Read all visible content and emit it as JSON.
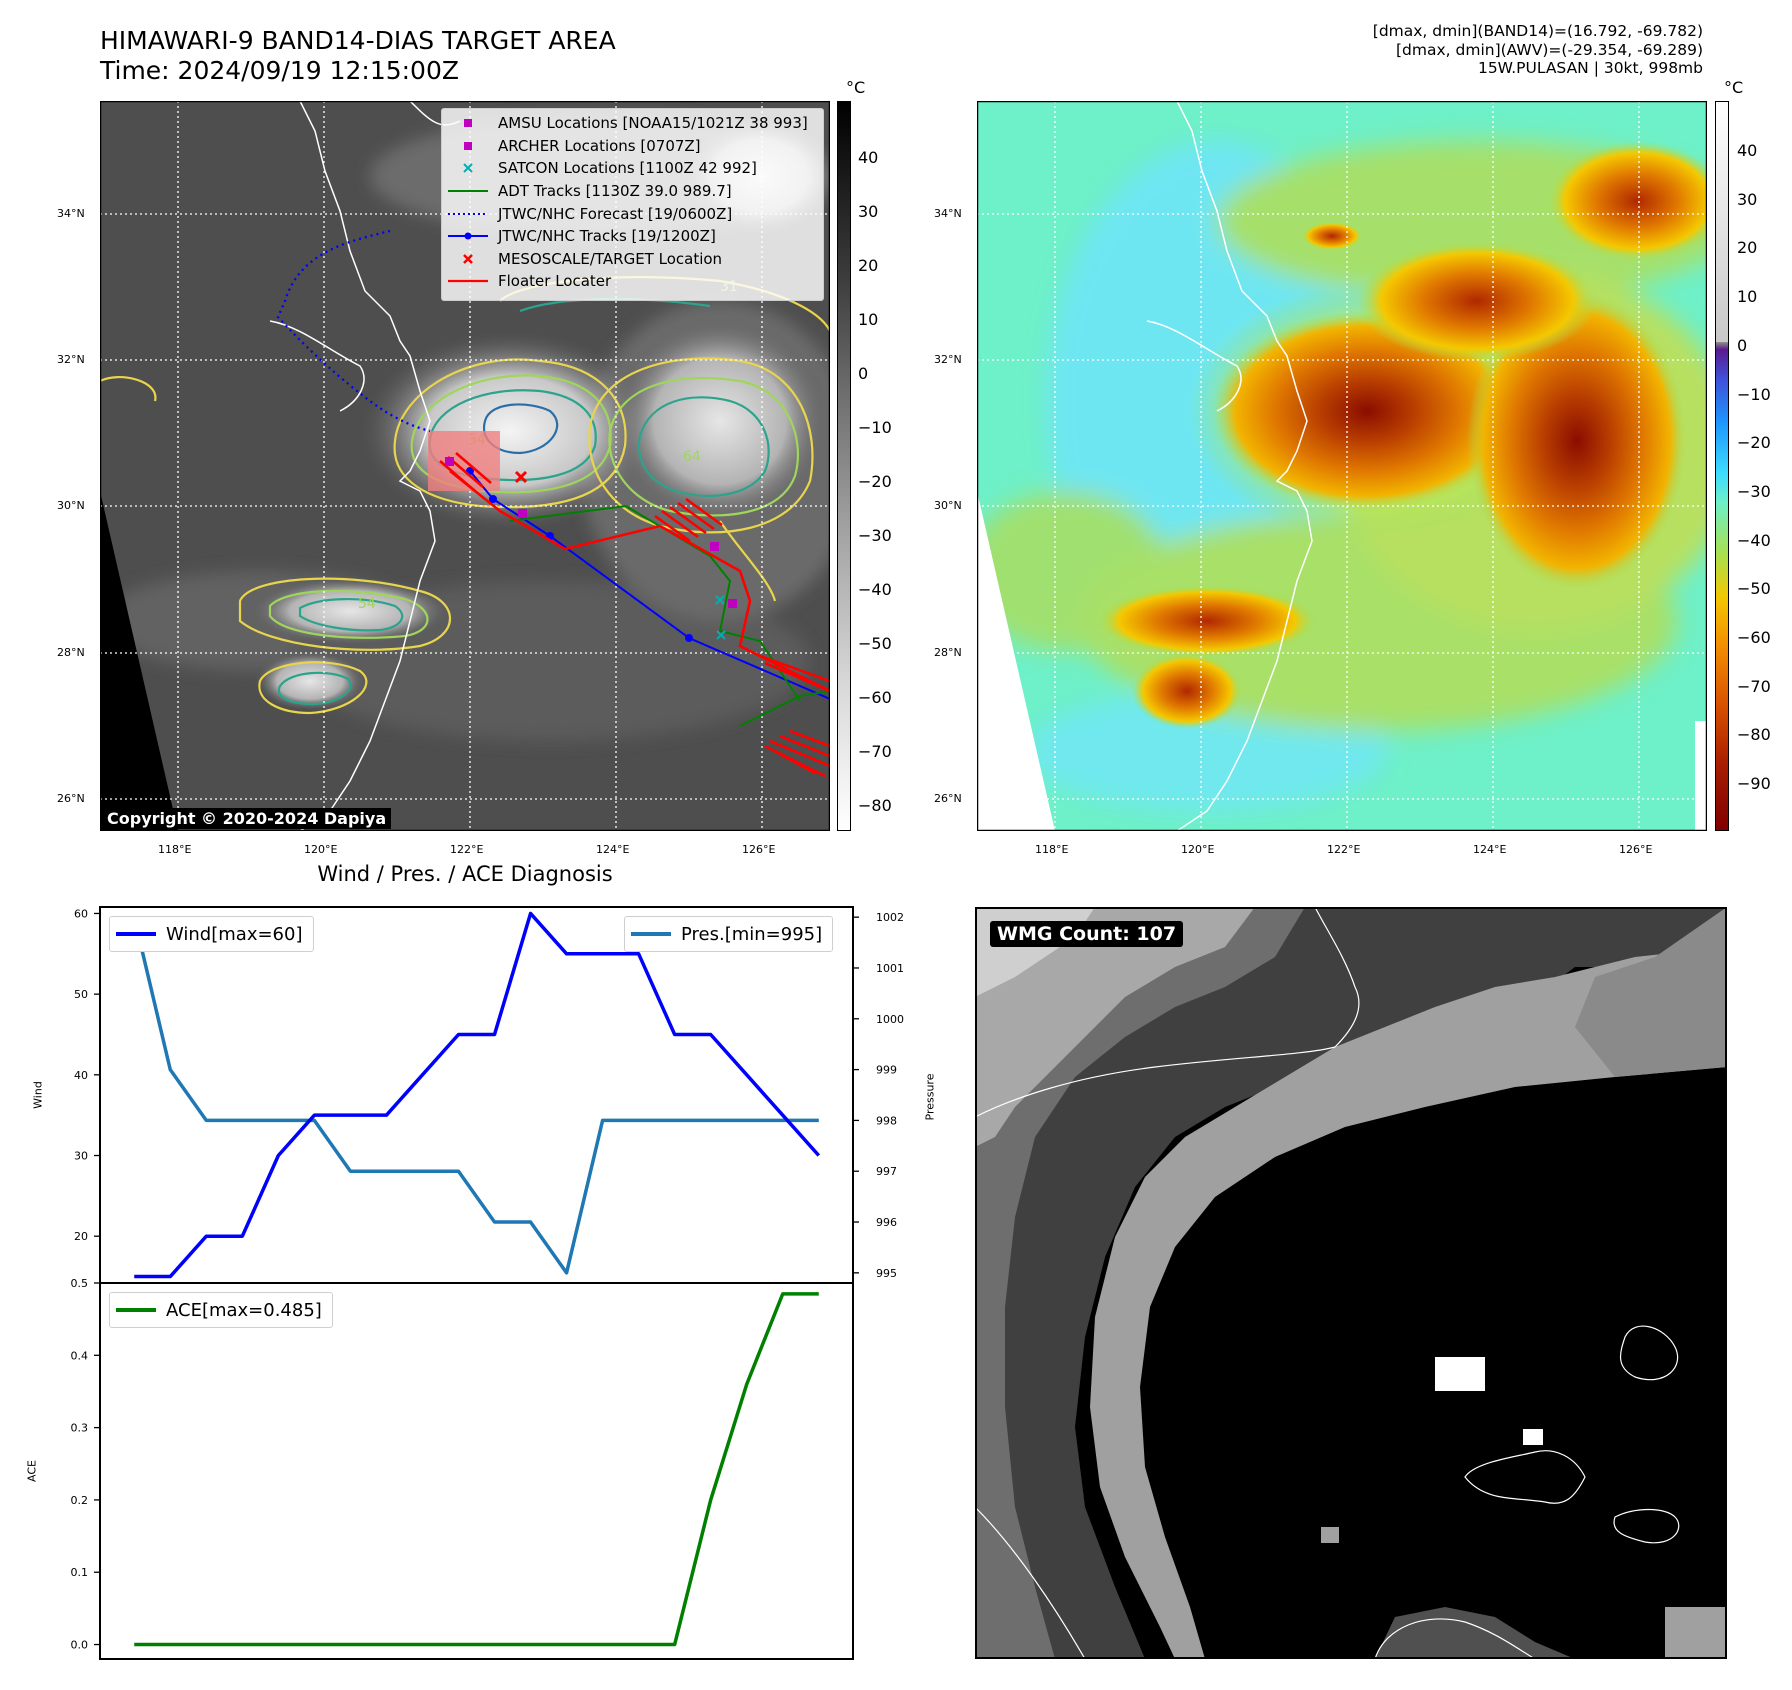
{
  "header": {
    "title_line1": "HIMAWARI-9 BAND14-DIAS TARGET AREA",
    "title_line2": "Time: 2024/09/19 12:15:00Z",
    "info_line1": "[dmax, dmin](BAND14)=(16.792, -69.782)",
    "info_line2": "[dmax, dmin](AWV)=(-29.354, -69.289)",
    "info_line3": "15W.PULASAN | 30kt, 998mb"
  },
  "map": {
    "lat_labels": [
      "34°N",
      "32°N",
      "30°N",
      "28°N",
      "26°N"
    ],
    "lon_labels": [
      "118°E",
      "120°E",
      "122°E",
      "124°E",
      "126°E"
    ],
    "copyright": "Copyright © 2020-2024 Dapiya",
    "contour_labels": [
      "54",
      "31",
      "64"
    ]
  },
  "colorbar_gray": {
    "unit": "°C",
    "ticks": [
      "40",
      "30",
      "20",
      "10",
      "0",
      "−10",
      "−20",
      "−30",
      "−40",
      "−50",
      "−60",
      "−70",
      "−80"
    ]
  },
  "colorbar_awv": {
    "unit": "°C",
    "ticks": [
      "40",
      "30",
      "20",
      "10",
      "0",
      "−10",
      "−20",
      "−30",
      "−40",
      "−50",
      "−60",
      "−70",
      "−80",
      "−90"
    ]
  },
  "legend": {
    "items": [
      {
        "label": "AMSU Locations [NOAA15/1021Z 38 993]",
        "marker": "square",
        "color": "#c000c0"
      },
      {
        "label": "ARCHER Locations [0707Z]",
        "marker": "square",
        "color": "#c000c0"
      },
      {
        "label": "SATCON Locations [1100Z 42 992]",
        "marker": "x",
        "color": "#00b0b0"
      },
      {
        "label": "ADT Tracks [1130Z 39.0 989.7]",
        "marker": "line",
        "color": "#008000"
      },
      {
        "label": "JTWC/NHC Forecast [19/0600Z]",
        "marker": "dotted",
        "color": "#0000ff"
      },
      {
        "label": "JTWC/NHC Tracks [19/1200Z]",
        "marker": "line-dot",
        "color": "#0000ff"
      },
      {
        "label": "MESOSCALE/TARGET Location",
        "marker": "x",
        "color": "#ff0000"
      },
      {
        "label": "Floater Locater",
        "marker": "line",
        "color": "#ff0000"
      }
    ]
  },
  "diag": {
    "title": "Wind / Pres. / ACE Diagnosis",
    "wind_ylabel": "Wind",
    "pres_ylabel": "Pressure",
    "ace_ylabel": "ACE",
    "wind_legend": "Wind[max=60]",
    "pres_legend": "Pres.[min=995]",
    "ace_legend": "ACE[max=0.485]",
    "wind_ticks": [
      "60",
      "50",
      "40",
      "30",
      "20"
    ],
    "pres_ticks": [
      "1002",
      "1001",
      "1000",
      "999",
      "998",
      "997",
      "996",
      "995"
    ],
    "ace_ticks": [
      "0.5",
      "0.4",
      "0.3",
      "0.2",
      "0.1",
      "0.0"
    ]
  },
  "wmg": {
    "label": "WMG Count: 107"
  },
  "chart_data": [
    {
      "type": "line",
      "title": "Wind / Pres. / ACE Diagnosis",
      "x": [
        0,
        1,
        2,
        3,
        4,
        5,
        6,
        7,
        8,
        9,
        10,
        11,
        12,
        13,
        14,
        15,
        16,
        17,
        18,
        19
      ],
      "series": [
        {
          "name": "Wind[max=60]",
          "color": "#0000ff",
          "axis": "left",
          "values": [
            15,
            15,
            20,
            20,
            30,
            35,
            35,
            35,
            40,
            45,
            45,
            60,
            55,
            55,
            55,
            45,
            45,
            40,
            35,
            30
          ]
        },
        {
          "name": "Pres.[min=995]",
          "color": "#1f77b4",
          "axis": "right",
          "values": [
            1002,
            999,
            998,
            998,
            998,
            998,
            997,
            997,
            997,
            997,
            996,
            996,
            995,
            998,
            998,
            998,
            998,
            998,
            998,
            998
          ]
        }
      ],
      "ylabel": "Wind",
      "ylabel_right": "Pressure",
      "ylim": [
        14.2,
        60.8
      ],
      "ylim_right": [
        994.8,
        1002.2
      ]
    },
    {
      "type": "line",
      "x": [
        0,
        1,
        2,
        3,
        4,
        5,
        6,
        7,
        8,
        9,
        10,
        11,
        12,
        13,
        14,
        15,
        16,
        17,
        18,
        19
      ],
      "series": [
        {
          "name": "ACE[max=0.485]",
          "color": "#008000",
          "values": [
            0,
            0,
            0,
            0,
            0,
            0,
            0,
            0,
            0,
            0,
            0,
            0,
            0,
            0,
            0,
            0,
            0.2,
            0.36,
            0.485,
            0.485
          ]
        }
      ],
      "ylabel": "ACE",
      "ylim": [
        -0.02,
        0.5
      ]
    }
  ]
}
